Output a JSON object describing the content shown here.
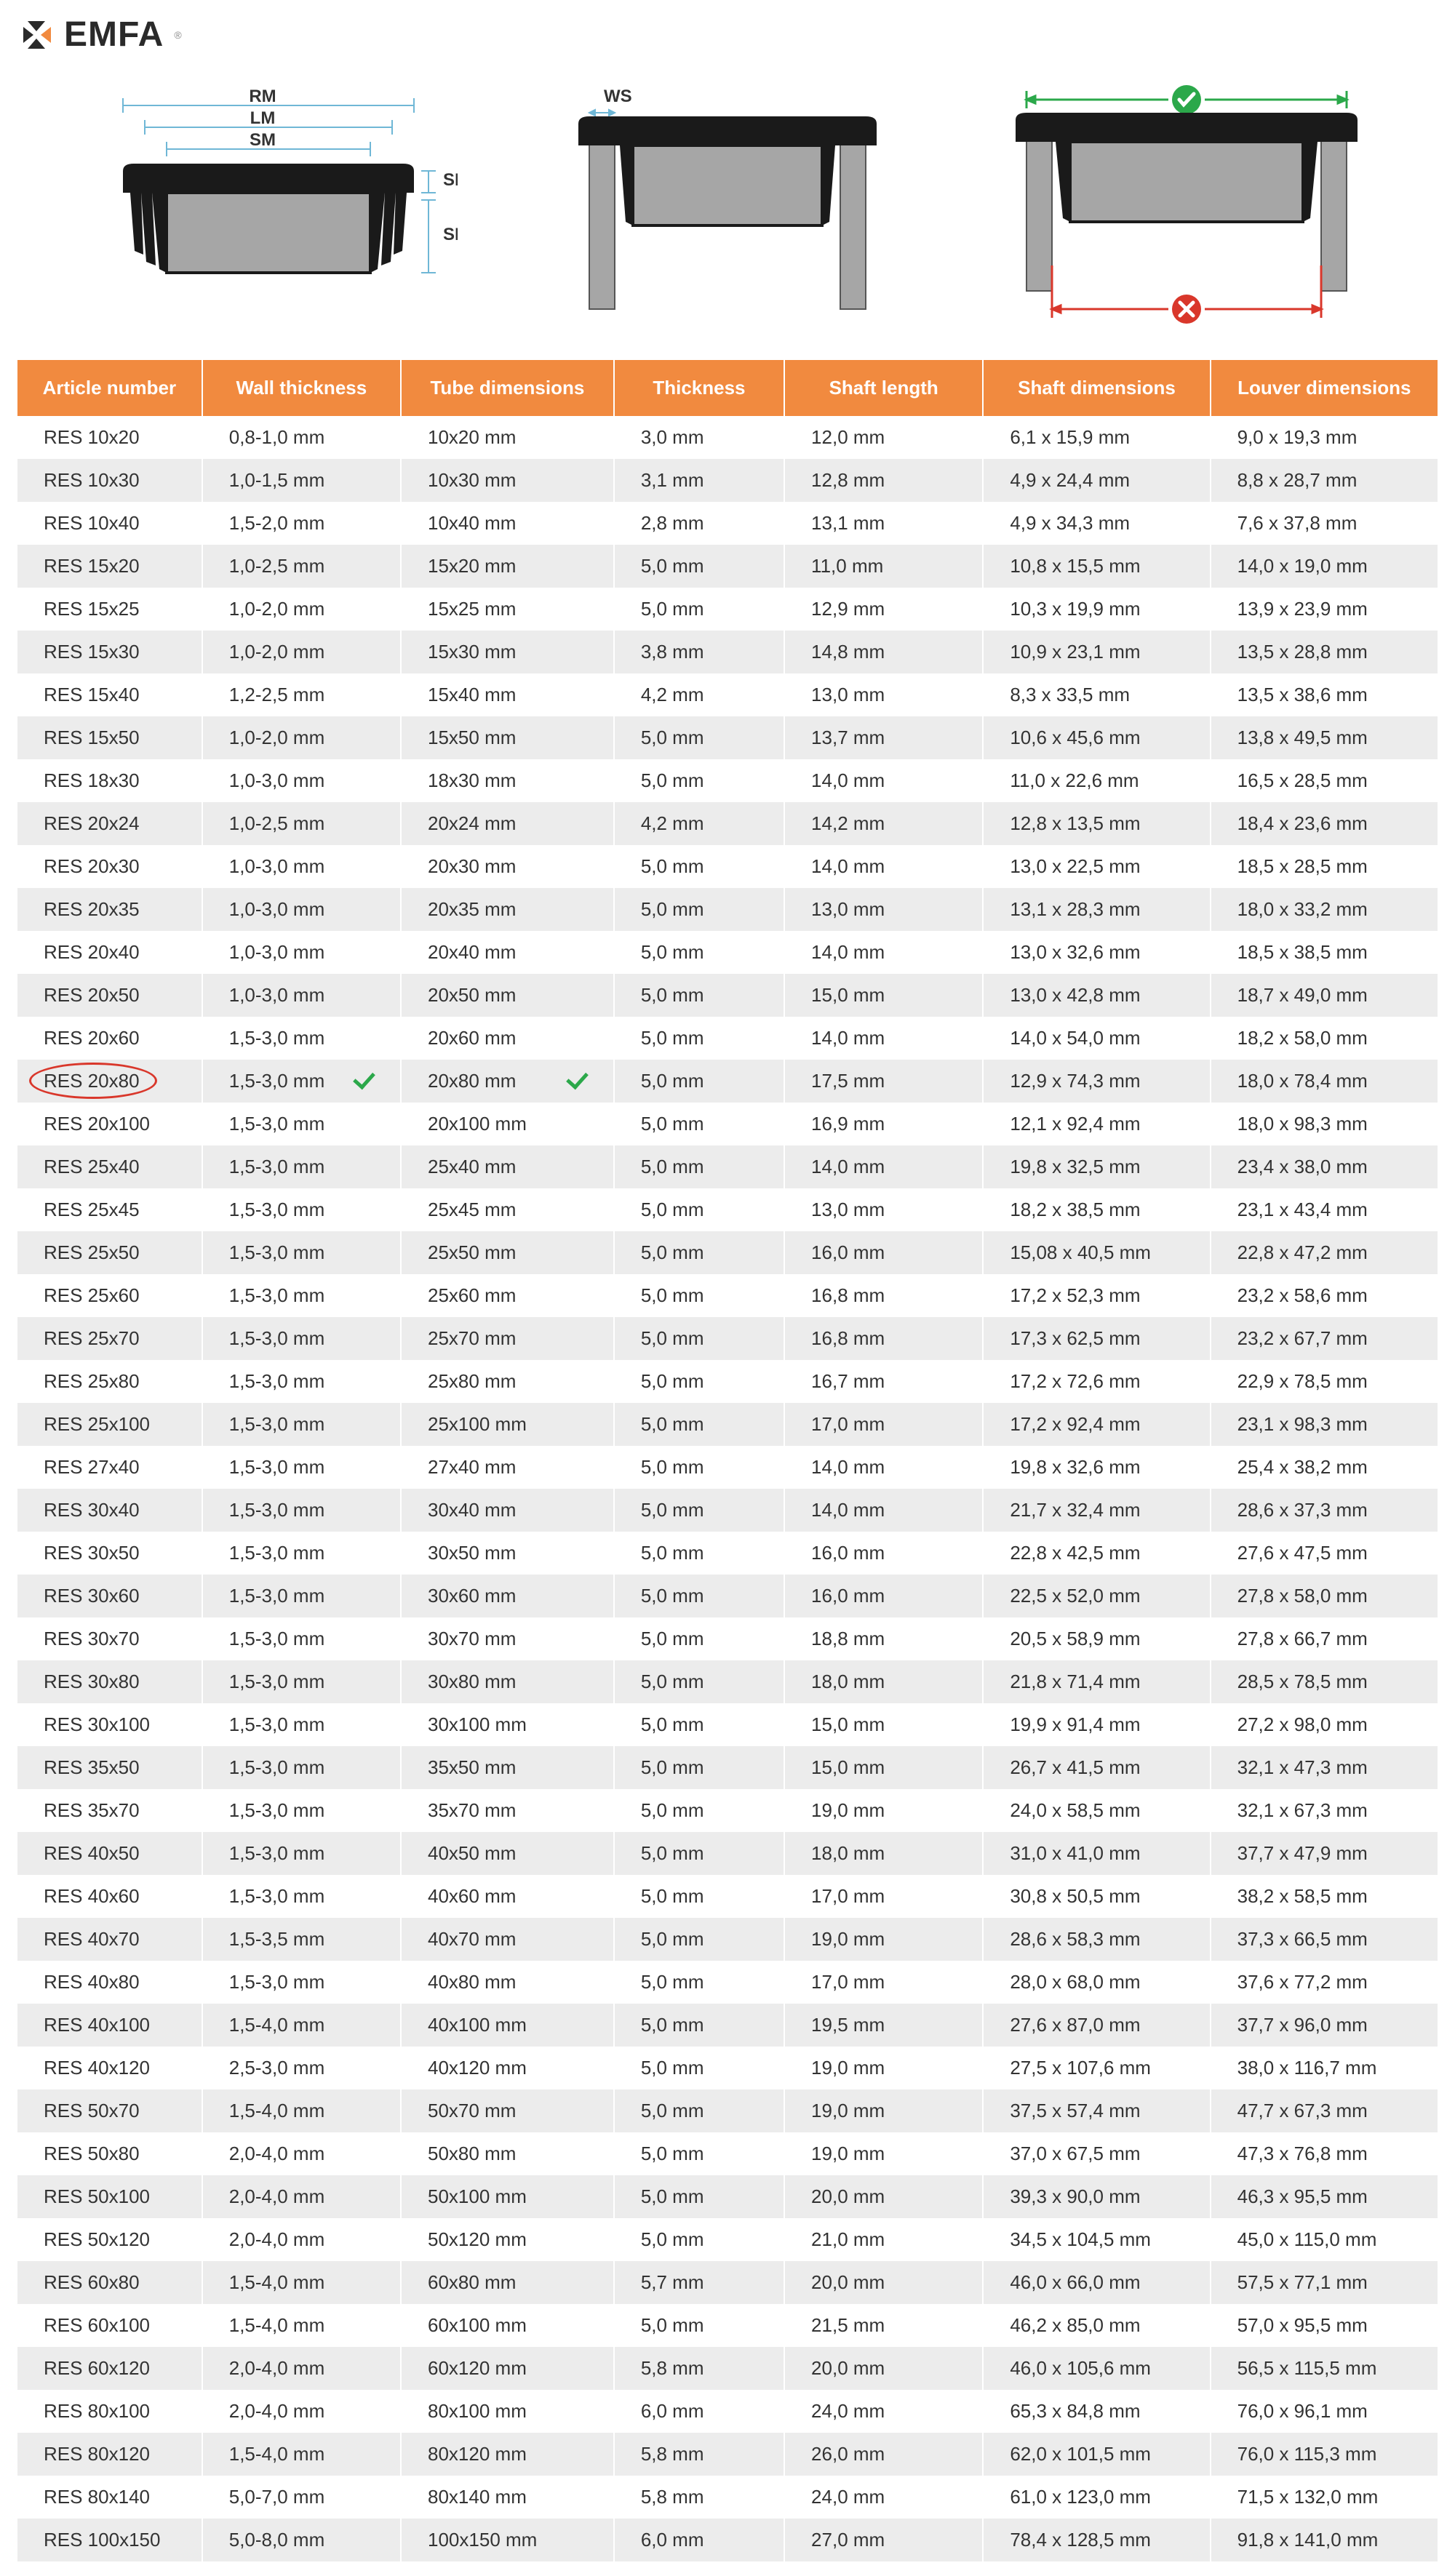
{
  "brand": {
    "name": "EMFA",
    "registered": "®"
  },
  "diagram_labels": {
    "rm": "RM",
    "lm": "LM",
    "sm": "SM",
    "sk": "SK",
    "se": "SE",
    "ws": "WS"
  },
  "colors": {
    "header_bg": "#f18a3f",
    "header_text": "#ffffff",
    "row_odd": "#ffffff",
    "row_even": "#ececec",
    "text": "#333333",
    "accent_green": "#2ba84a",
    "accent_red": "#d9372b",
    "logo_orange": "#f18a3f",
    "diagram_tube": "#a6a6a6",
    "diagram_plug": "#1a1a1a",
    "dim_line": "#6fb7d6"
  },
  "table": {
    "columns": [
      "Article number",
      "Wall thickness",
      "Tube dimensions",
      "Thickness",
      "Shaft length",
      "Shaft dimensions",
      "Louver dimensions"
    ],
    "highlighted_row_index": 15,
    "rows": [
      [
        "RES 10x20",
        "0,8-1,0 mm",
        "10x20 mm",
        "3,0 mm",
        "12,0 mm",
        "6,1 x 15,9 mm",
        "9,0 x 19,3 mm"
      ],
      [
        "RES 10x30",
        "1,0-1,5 mm",
        "10x30 mm",
        "3,1 mm",
        "12,8 mm",
        "4,9 x 24,4 mm",
        "8,8 x 28,7 mm"
      ],
      [
        "RES 10x40",
        "1,5-2,0 mm",
        "10x40 mm",
        "2,8 mm",
        "13,1 mm",
        "4,9 x 34,3 mm",
        "7,6 x 37,8 mm"
      ],
      [
        "RES 15x20",
        "1,0-2,5 mm",
        "15x20 mm",
        "5,0 mm",
        "11,0 mm",
        "10,8 x 15,5 mm",
        "14,0 x 19,0 mm"
      ],
      [
        "RES 15x25",
        "1,0-2,0 mm",
        "15x25 mm",
        "5,0 mm",
        "12,9 mm",
        "10,3 x 19,9 mm",
        "13,9 x 23,9 mm"
      ],
      [
        "RES 15x30",
        "1,0-2,0 mm",
        "15x30 mm",
        "3,8 mm",
        "14,8 mm",
        "10,9 x 23,1 mm",
        "13,5 x 28,8 mm"
      ],
      [
        "RES 15x40",
        "1,2-2,5 mm",
        "15x40 mm",
        "4,2 mm",
        "13,0 mm",
        "8,3 x 33,5 mm",
        "13,5 x 38,6 mm"
      ],
      [
        "RES 15x50",
        "1,0-2,0 mm",
        "15x50 mm",
        "5,0 mm",
        "13,7 mm",
        "10,6 x 45,6 mm",
        "13,8 x 49,5 mm"
      ],
      [
        "RES 18x30",
        "1,0-3,0 mm",
        "18x30 mm",
        "5,0 mm",
        "14,0 mm",
        "11,0 x 22,6 mm",
        "16,5 x 28,5 mm"
      ],
      [
        "RES 20x24",
        "1,0-2,5 mm",
        "20x24 mm",
        "4,2 mm",
        "14,2 mm",
        "12,8 x 13,5 mm",
        "18,4 x 23,6 mm"
      ],
      [
        "RES 20x30",
        "1,0-3,0 mm",
        "20x30 mm",
        "5,0 mm",
        "14,0 mm",
        "13,0 x 22,5 mm",
        "18,5 x 28,5 mm"
      ],
      [
        "RES 20x35",
        "1,0-3,0 mm",
        "20x35 mm",
        "5,0 mm",
        "13,0 mm",
        "13,1 x 28,3 mm",
        "18,0 x 33,2 mm"
      ],
      [
        "RES 20x40",
        "1,0-3,0 mm",
        "20x40 mm",
        "5,0 mm",
        "14,0 mm",
        "13,0 x 32,6 mm",
        "18,5 x 38,5 mm"
      ],
      [
        "RES 20x50",
        "1,0-3,0 mm",
        "20x50 mm",
        "5,0 mm",
        "15,0 mm",
        "13,0 x 42,8 mm",
        "18,7 x 49,0 mm"
      ],
      [
        "RES 20x60",
        "1,5-3,0 mm",
        "20x60 mm",
        "5,0 mm",
        "14,0 mm",
        "14,0 x 54,0 mm",
        "18,2 x 58,0 mm"
      ],
      [
        "RES 20x80",
        "1,5-3,0 mm",
        "20x80 mm",
        "5,0 mm",
        "17,5 mm",
        "12,9 x 74,3 mm",
        "18,0 x 78,4 mm"
      ],
      [
        "RES 20x100",
        "1,5-3,0 mm",
        "20x100 mm",
        "5,0 mm",
        "16,9 mm",
        "12,1 x 92,4 mm",
        "18,0 x 98,3 mm"
      ],
      [
        "RES 25x40",
        "1,5-3,0 mm",
        "25x40 mm",
        "5,0 mm",
        "14,0 mm",
        "19,8 x 32,5 mm",
        "23,4 x 38,0 mm"
      ],
      [
        "RES 25x45",
        "1,5-3,0 mm",
        "25x45 mm",
        "5,0 mm",
        "13,0 mm",
        "18,2 x 38,5 mm",
        "23,1 x 43,4 mm"
      ],
      [
        "RES 25x50",
        "1,5-3,0 mm",
        "25x50 mm",
        "5,0 mm",
        "16,0 mm",
        "15,08 x 40,5 mm",
        "22,8 x 47,2 mm"
      ],
      [
        "RES 25x60",
        "1,5-3,0 mm",
        "25x60 mm",
        "5,0 mm",
        "16,8 mm",
        "17,2 x 52,3 mm",
        "23,2 x 58,6 mm"
      ],
      [
        "RES 25x70",
        "1,5-3,0 mm",
        "25x70 mm",
        "5,0 mm",
        "16,8 mm",
        "17,3 x 62,5 mm",
        "23,2 x 67,7 mm"
      ],
      [
        "RES 25x80",
        "1,5-3,0 mm",
        "25x80 mm",
        "5,0 mm",
        "16,7 mm",
        "17,2 x 72,6 mm",
        "22,9 x 78,5 mm"
      ],
      [
        "RES 25x100",
        "1,5-3,0 mm",
        "25x100 mm",
        "5,0 mm",
        "17,0 mm",
        "17,2 x 92,4 mm",
        "23,1 x 98,3 mm"
      ],
      [
        "RES 27x40",
        "1,5-3,0 mm",
        "27x40 mm",
        "5,0 mm",
        "14,0 mm",
        "19,8 x 32,6 mm",
        "25,4 x 38,2 mm"
      ],
      [
        "RES 30x40",
        "1,5-3,0 mm",
        "30x40 mm",
        "5,0 mm",
        "14,0 mm",
        "21,7 x 32,4 mm",
        "28,6 x 37,3 mm"
      ],
      [
        "RES 30x50",
        "1,5-3,0 mm",
        "30x50 mm",
        "5,0 mm",
        "16,0 mm",
        "22,8 x 42,5 mm",
        "27,6 x 47,5 mm"
      ],
      [
        "RES 30x60",
        "1,5-3,0 mm",
        "30x60 mm",
        "5,0 mm",
        "16,0 mm",
        "22,5 x 52,0 mm",
        "27,8 x 58,0 mm"
      ],
      [
        "RES 30x70",
        "1,5-3,0 mm",
        "30x70 mm",
        "5,0 mm",
        "18,8 mm",
        "20,5 x 58,9 mm",
        "27,8 x 66,7 mm"
      ],
      [
        "RES 30x80",
        "1,5-3,0 mm",
        "30x80 mm",
        "5,0 mm",
        "18,0 mm",
        "21,8 x 71,4 mm",
        "28,5 x 78,5 mm"
      ],
      [
        "RES 30x100",
        "1,5-3,0 mm",
        "30x100 mm",
        "5,0 mm",
        "15,0 mm",
        "19,9 x 91,4 mm",
        "27,2 x 98,0 mm"
      ],
      [
        "RES 35x50",
        "1,5-3,0 mm",
        "35x50 mm",
        "5,0 mm",
        "15,0 mm",
        "26,7 x 41,5 mm",
        "32,1 x 47,3 mm"
      ],
      [
        "RES 35x70",
        "1,5-3,0 mm",
        "35x70 mm",
        "5,0 mm",
        "19,0 mm",
        "24,0 x 58,5 mm",
        "32,1 x 67,3 mm"
      ],
      [
        "RES 40x50",
        "1,5-3,0 mm",
        "40x50 mm",
        "5,0 mm",
        "18,0 mm",
        "31,0 x 41,0 mm",
        "37,7 x 47,9 mm"
      ],
      [
        "RES 40x60",
        "1,5-3,0 mm",
        "40x60 mm",
        "5,0 mm",
        "17,0 mm",
        "30,8 x 50,5 mm",
        "38,2 x 58,5 mm"
      ],
      [
        "RES 40x70",
        "1,5-3,5 mm",
        "40x70 mm",
        "5,0 mm",
        "19,0 mm",
        "28,6 x 58,3 mm",
        "37,3 x 66,5 mm"
      ],
      [
        "RES 40x80",
        "1,5-3,0 mm",
        "40x80 mm",
        "5,0 mm",
        "17,0 mm",
        "28,0 x 68,0 mm",
        "37,6 x 77,2 mm"
      ],
      [
        "RES 40x100",
        "1,5-4,0 mm",
        "40x100 mm",
        "5,0 mm",
        "19,5 mm",
        "27,6 x 87,0 mm",
        "37,7 x 96,0 mm"
      ],
      [
        "RES 40x120",
        "2,5-3,0 mm",
        "40x120 mm",
        "5,0 mm",
        "19,0 mm",
        "27,5 x 107,6 mm",
        "38,0 x 116,7 mm"
      ],
      [
        "RES 50x70",
        "1,5-4,0 mm",
        "50x70 mm",
        "5,0 mm",
        "19,0 mm",
        "37,5 x 57,4 mm",
        "47,7 x 67,3 mm"
      ],
      [
        "RES 50x80",
        "2,0-4,0 mm",
        "50x80 mm",
        "5,0 mm",
        "19,0 mm",
        "37,0 x 67,5 mm",
        "47,3 x 76,8 mm"
      ],
      [
        "RES 50x100",
        "2,0-4,0 mm",
        "50x100 mm",
        "5,0 mm",
        "20,0 mm",
        "39,3 x 90,0 mm",
        "46,3 x 95,5 mm"
      ],
      [
        "RES 50x120",
        "2,0-4,0 mm",
        "50x120 mm",
        "5,0 mm",
        "21,0 mm",
        "34,5 x 104,5 mm",
        "45,0 x 115,0 mm"
      ],
      [
        "RES 60x80",
        "1,5-4,0 mm",
        "60x80 mm",
        "5,7 mm",
        "20,0 mm",
        "46,0 x 66,0 mm",
        "57,5 x 77,1 mm"
      ],
      [
        "RES 60x100",
        "1,5-4,0 mm",
        "60x100 mm",
        "5,0 mm",
        "21,5 mm",
        "46,2 x 85,0 mm",
        "57,0 x 95,5 mm"
      ],
      [
        "RES 60x120",
        "2,0-4,0 mm",
        "60x120 mm",
        "5,8 mm",
        "20,0 mm",
        "46,0 x 105,6 mm",
        "56,5 x 115,5 mm"
      ],
      [
        "RES 80x100",
        "2,0-4,0 mm",
        "80x100 mm",
        "6,0 mm",
        "24,0 mm",
        "65,3 x 84,8 mm",
        "76,0 x 96,1 mm"
      ],
      [
        "RES 80x120",
        "1,5-4,0 mm",
        "80x120 mm",
        "5,8 mm",
        "26,0 mm",
        "62,0 x 101,5 mm",
        "76,0 x 115,3 mm"
      ],
      [
        "RES 80x140",
        "5,0-7,0 mm",
        "80x140 mm",
        "5,8 mm",
        "24,0 mm",
        "61,0 x 123,0 mm",
        "71,5 x 132,0 mm"
      ],
      [
        "RES 100x150",
        "5,0-8,0 mm",
        "100x150 mm",
        "6,0 mm",
        "27,0 mm",
        "78,4 x 128,5 mm",
        "91,8 x 141,0 mm"
      ]
    ]
  }
}
